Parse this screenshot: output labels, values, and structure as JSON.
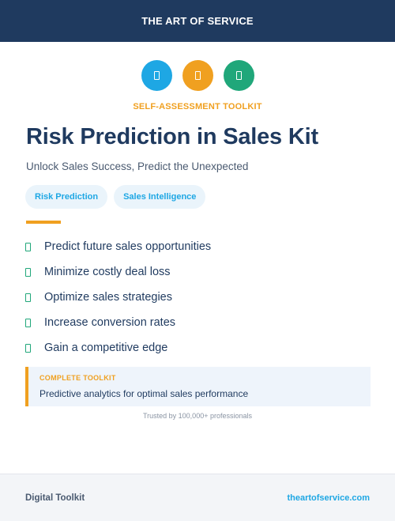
{
  "header": {
    "title": "THE ART OF SERVICE"
  },
  "icons": [
    {
      "name": "document-icon",
      "color": "#1ea7e4"
    },
    {
      "name": "document-icon",
      "color": "#f0a020"
    },
    {
      "name": "document-icon",
      "color": "#20a77a"
    }
  ],
  "eyebrow": "SELF-ASSESSMENT TOOLKIT",
  "title": "Risk Prediction in Sales Kit",
  "subtitle": "Unlock Sales Success, Predict the Unexpected",
  "tags": [
    "Risk Prediction",
    "Sales Intelligence"
  ],
  "benefits": [
    "Predict future sales opportunities",
    "Minimize costly deal loss",
    "Optimize sales strategies",
    "Increase conversion rates",
    "Gain a competitive edge"
  ],
  "callout": {
    "label": "COMPLETE TOOLKIT",
    "text": "Predictive analytics for optimal sales performance"
  },
  "trusted": "Trusted by 100,000+ professionals",
  "footer": {
    "left": "Digital Toolkit",
    "right": "theartofservice.com"
  },
  "colors": {
    "navy": "#1f3a5f",
    "accent_orange": "#f0a020",
    "accent_blue": "#1ea7e4",
    "accent_green": "#20a77a",
    "tag_bg": "#eaf4fb"
  }
}
